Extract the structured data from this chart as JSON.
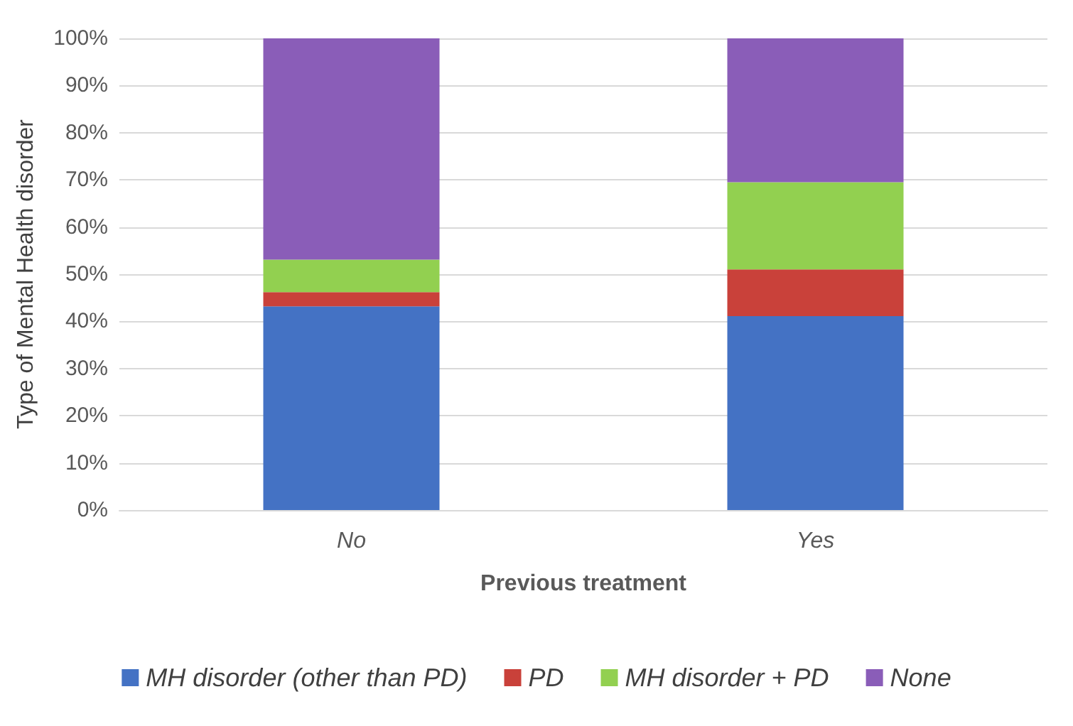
{
  "chart_data": {
    "type": "bar",
    "stacked": true,
    "xlabel": "Previous treatment",
    "ylabel": "Type of Mental Health disorder",
    "categories": [
      "No",
      "Yes"
    ],
    "series": [
      {
        "name": "MH disorder (other than PD)",
        "color": "#4472c4",
        "values": [
          43.2,
          41.1
        ]
      },
      {
        "name": "PD",
        "color": "#c9413a",
        "values": [
          3.0,
          9.9
        ]
      },
      {
        "name": "MH disorder + PD",
        "color": "#92d050",
        "values": [
          6.9,
          18.5
        ]
      },
      {
        "name": "None",
        "color": "#8a5db8",
        "values": [
          46.9,
          30.5
        ]
      }
    ],
    "ylim": [
      0,
      100
    ],
    "yticks": [
      {
        "value": 0,
        "label": "0%"
      },
      {
        "value": 10,
        "label": "10%"
      },
      {
        "value": 20,
        "label": "20%"
      },
      {
        "value": 30,
        "label": "30%"
      },
      {
        "value": 40,
        "label": "40%"
      },
      {
        "value": 50,
        "label": "50%"
      },
      {
        "value": 60,
        "label": "60%"
      },
      {
        "value": 70,
        "label": "70%"
      },
      {
        "value": 80,
        "label": "80%"
      },
      {
        "value": 90,
        "label": "90%"
      },
      {
        "value": 100,
        "label": "100%"
      }
    ],
    "grid": "y",
    "legend": "bottom"
  }
}
